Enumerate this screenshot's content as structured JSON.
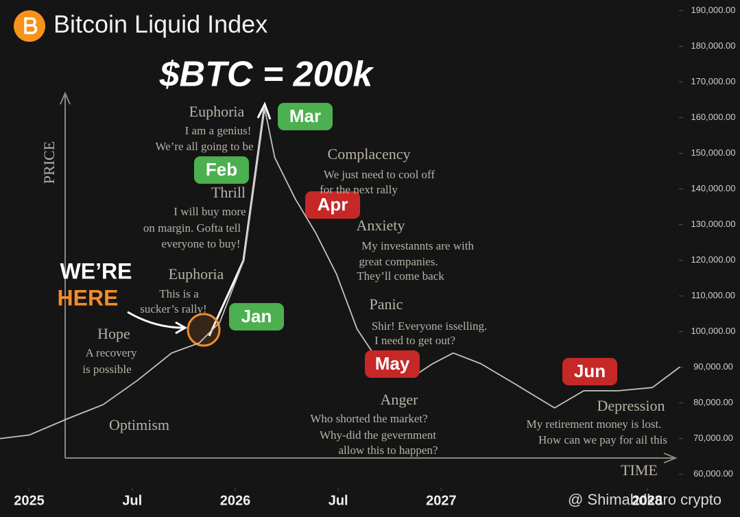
{
  "chart_data": {
    "type": "line",
    "title": "Bitcoin Liquid Index",
    "subtitle": "$BTC = 200k",
    "y_label": "PRICE",
    "x_label": "TIME",
    "watermark": "@ Shimabdkaro crypto",
    "xlim": [
      -1.7,
      41.4
    ],
    "ylim": [
      48000,
      193000
    ],
    "xticks": [
      {
        "value": 0,
        "label": "2025"
      },
      {
        "value": 6,
        "label": "Jul"
      },
      {
        "value": 12,
        "label": "2026"
      },
      {
        "value": 18,
        "label": "Jul"
      },
      {
        "value": 24,
        "label": "2027"
      },
      {
        "value": 36,
        "label": "2028"
      }
    ],
    "yticks": [
      {
        "value": 190000,
        "label": "190,000.00"
      },
      {
        "value": 180000,
        "label": "180,000.00"
      },
      {
        "value": 170000,
        "label": "170,000.00"
      },
      {
        "value": 160000,
        "label": "160,000.00"
      },
      {
        "value": 150000,
        "label": "150,000.00"
      },
      {
        "value": 140000,
        "label": "140,000.00"
      },
      {
        "value": 130000,
        "label": "130,000.00"
      },
      {
        "value": 120000,
        "label": "120,000.00"
      },
      {
        "value": 110000,
        "label": "110,000.00"
      },
      {
        "value": 100000,
        "label": "100,000.00"
      },
      {
        "value": 90000,
        "label": "90,000.00"
      },
      {
        "value": 80000,
        "label": "80,000.00"
      },
      {
        "value": 70000,
        "label": "70,000.00"
      },
      {
        "value": 60000,
        "label": "60,000.00"
      }
    ],
    "series": [
      {
        "color": "#c8c3ba",
        "x": [
          -1.7,
          0,
          2.3,
          4.3,
          6.3,
          8.3,
          9.9,
          11.1,
          12.5,
          13.7,
          14.3,
          15.5,
          16.7,
          17.9,
          19.1,
          20.3,
          22.3,
          23.5,
          24.7,
          26.3,
          28.3,
          30.6,
          32.3,
          34.3,
          36.3,
          37.9
        ],
        "values": [
          70000,
          71000,
          75700,
          79500,
          86300,
          94000,
          96800,
          102600,
          120000,
          163000,
          148800,
          137200,
          127600,
          116100,
          100700,
          92000,
          87200,
          91000,
          94000,
          91000,
          85300,
          78600,
          83400,
          83400,
          84300,
          90100
        ]
      }
    ],
    "badges": [
      {
        "label": "Jan",
        "color": "#4caf50"
      },
      {
        "label": "Feb",
        "color": "#4caf50"
      },
      {
        "label": "Mar",
        "color": "#4caf50"
      },
      {
        "label": "Apr",
        "color": "#c62828"
      },
      {
        "label": "May",
        "color": "#c62828"
      },
      {
        "label": "Jun",
        "color": "#c62828"
      }
    ],
    "callout": [
      "WE’RE",
      "HERE"
    ],
    "annotations": [
      "Euphoria",
      "I am a genius!",
      "We’re all going to be",
      "Thrill",
      "I will buy more",
      "on margin. Gofta tell",
      "everyone to buy!",
      "Euphoria",
      "This is a",
      "sucker’s rally!",
      "Hope",
      "A recovery",
      "is possible",
      "Optimism",
      "Complacency",
      "We just need to cool off",
      "for the next rally",
      "Anxiety",
      "My investannts are with",
      "great companies.",
      "They’ll come back",
      "Panic",
      "Shir! Everyone isselling.",
      "I need to get out?",
      "Anger",
      "Who shorted the market?",
      "Why-did the gevernment",
      "allow this to happen?",
      "Depression",
      "My retirement money is lost.",
      "How can we pay for ail this"
    ]
  }
}
